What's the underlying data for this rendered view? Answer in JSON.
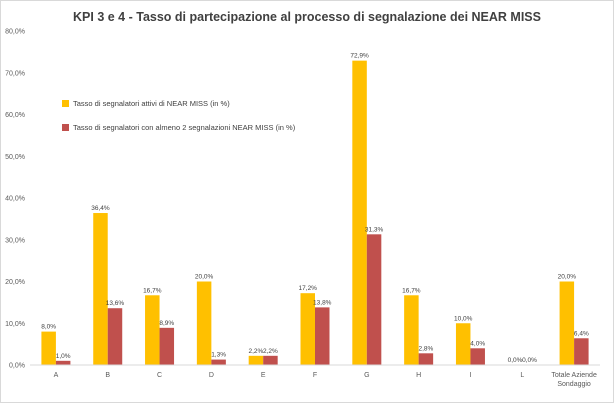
{
  "chart_data": {
    "type": "bar",
    "title": "KPI 3 e 4 - Tasso di partecipazione al processo di segnalazione dei NEAR MISS",
    "categories": [
      "A",
      "B",
      "C",
      "D",
      "E",
      "F",
      "G",
      "H",
      "I",
      "L",
      "Totale Aziende Sondaggio"
    ],
    "series": [
      {
        "name": "Tasso di segnalatori attivi di NEAR MISS (in %)",
        "color": "#FFC000",
        "values": [
          8.0,
          36.4,
          16.7,
          20.0,
          2.2,
          17.2,
          72.9,
          16.7,
          10.0,
          0.0,
          20.0
        ],
        "labels": [
          "8,0%",
          "36,4%",
          "16,7%",
          "20,0%",
          "2,2%",
          "17,2%",
          "72,9%",
          "16,7%",
          "10,0%",
          "0,0%",
          "20,0%"
        ]
      },
      {
        "name": "Tasso di segnalatori con almeno 2 segnalazioni NEAR MISS (in %)",
        "color": "#C0504D",
        "values": [
          1.0,
          13.6,
          8.9,
          1.3,
          2.2,
          13.8,
          31.3,
          2.8,
          4.0,
          0.0,
          6.4
        ],
        "labels": [
          "1,0%",
          "13,6%",
          "8,9%",
          "1,3%",
          "2,2%",
          "13,8%",
          "31,3%",
          "2,8%",
          "4,0%",
          "0,0%",
          "6,4%"
        ]
      }
    ],
    "ylim": [
      0,
      80
    ],
    "yticks": [
      "0,0%",
      "10,0%",
      "20,0%",
      "30,0%",
      "40,0%",
      "50,0%",
      "60,0%",
      "70,0%",
      "80,0%"
    ],
    "grid": false,
    "legend_position": "left, inside plot area"
  }
}
